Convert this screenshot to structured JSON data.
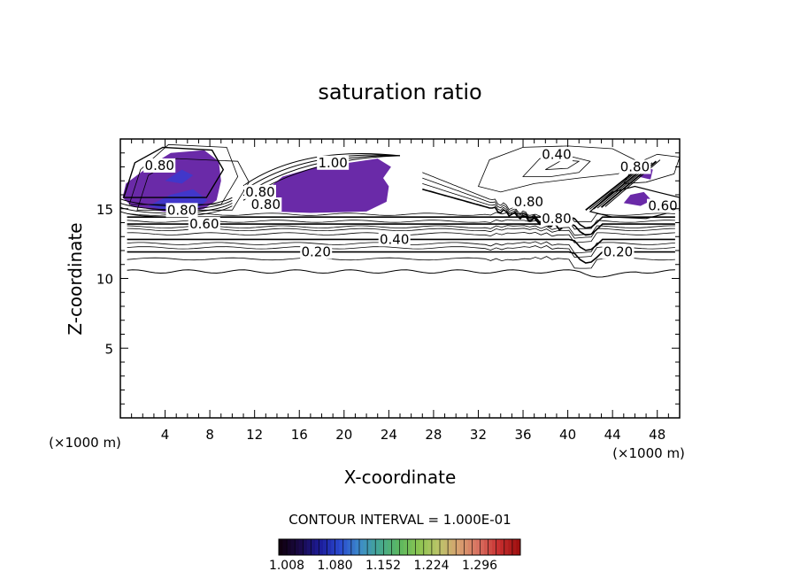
{
  "chart_data": {
    "type": "contour",
    "title": "saturation ratio",
    "xlabel": "X-coordinate",
    "ylabel": "Z-coordinate",
    "x_unit_left": "(×1000 m)",
    "x_unit_right": "(×1000 m)",
    "xlim": [
      0,
      50
    ],
    "ylim": [
      0,
      20
    ],
    "x_ticks": [
      4,
      8,
      12,
      16,
      20,
      24,
      28,
      32,
      36,
      40,
      44,
      48
    ],
    "y_ticks": [
      5,
      10,
      15
    ],
    "contour_interval_text": "CONTOUR INTERVAL = 1.000E-01",
    "colorbar_ticks": [
      "1.008",
      "1.080",
      "1.152",
      "1.224",
      "1.296"
    ],
    "colorbar_colors": [
      "#100010",
      "#1a0a4a",
      "#1c1c9a",
      "#2a4ad0",
      "#3d8cc9",
      "#45a890",
      "#5cb860",
      "#8cc450",
      "#bcc46a",
      "#d8a070",
      "#d87060",
      "#c83030",
      "#a01010"
    ],
    "fill_color": "#6a2aa8",
    "fill_core_color": "#3a3ad0",
    "contour_labels": [
      "0.80",
      "1.00",
      "0.40",
      "0.80",
      "0.80",
      "0.60",
      "0.80",
      "0.40",
      "0.20",
      "0.20",
      "0.80",
      "0.60",
      "0.80",
      "0.80"
    ],
    "horizontal_levels": [
      {
        "level": 0.2,
        "y": 11.9,
        "label": "0.20",
        "label_x": 17.5
      },
      {
        "level": 0.4,
        "y": 12.8,
        "label": "0.40",
        "label_x": 24.5
      },
      {
        "level": 0.6,
        "y": 13.9,
        "label": "0.60",
        "label_x": 7.5
      },
      {
        "level": 0.8,
        "y": 14.4,
        "label": "0.80",
        "label_x": 4.0
      }
    ],
    "cloud_base_z": 10.5
  }
}
